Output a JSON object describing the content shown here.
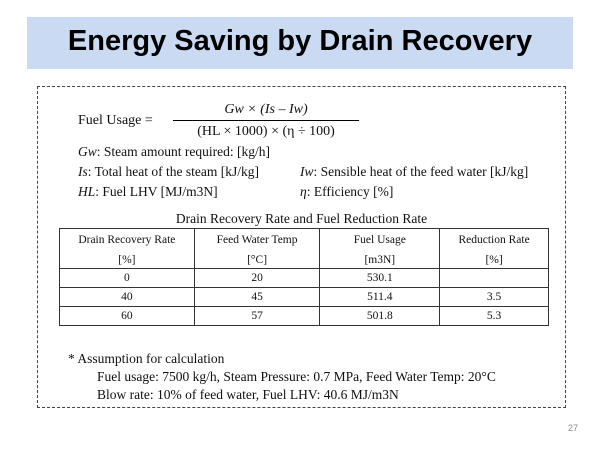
{
  "slide": {
    "title": "Energy Saving by Drain Recovery",
    "page_number": "27"
  },
  "formula": {
    "label": "Fuel Usage =",
    "numerator": "Gw × (Is – Iw)",
    "denominator": "(HL × 1000) × (η ÷ 100)"
  },
  "definitions": {
    "gw": {
      "symbol": "Gw",
      "text": ": Steam amount required: [kg/h]"
    },
    "is": {
      "symbol": "Is",
      "text": ": Total heat of the steam [kJ/kg]"
    },
    "iw": {
      "symbol": "Iw",
      "text": ": Sensible heat of the feed water [kJ/kg]"
    },
    "hl": {
      "symbol": "HL",
      "text": ": Fuel LHV [MJ/m3N]"
    },
    "eta": {
      "symbol": "η",
      "text": ": Efficiency [%]"
    }
  },
  "table": {
    "title": "Drain Recovery Rate and Fuel Reduction Rate",
    "headers": [
      "Drain Recovery Rate",
      "Feed Water Temp",
      "Fuel Usage",
      "Reduction Rate"
    ],
    "units": [
      "[%]",
      "[°C]",
      "[m3N]",
      "[%]"
    ],
    "rows": [
      [
        "0",
        "20",
        "530.1",
        ""
      ],
      [
        "40",
        "45",
        "511.4",
        "3.5"
      ],
      [
        "60",
        "57",
        "501.8",
        "5.3"
      ]
    ]
  },
  "notes": {
    "heading": "* Assumption for calculation",
    "line1": "Fuel usage: 7500 kg/h, Steam Pressure: 0.7 MPa, Feed Water Temp: 20°C",
    "line2": "Blow rate: 10% of feed water, Fuel LHV: 40.6 MJ/m3N"
  }
}
